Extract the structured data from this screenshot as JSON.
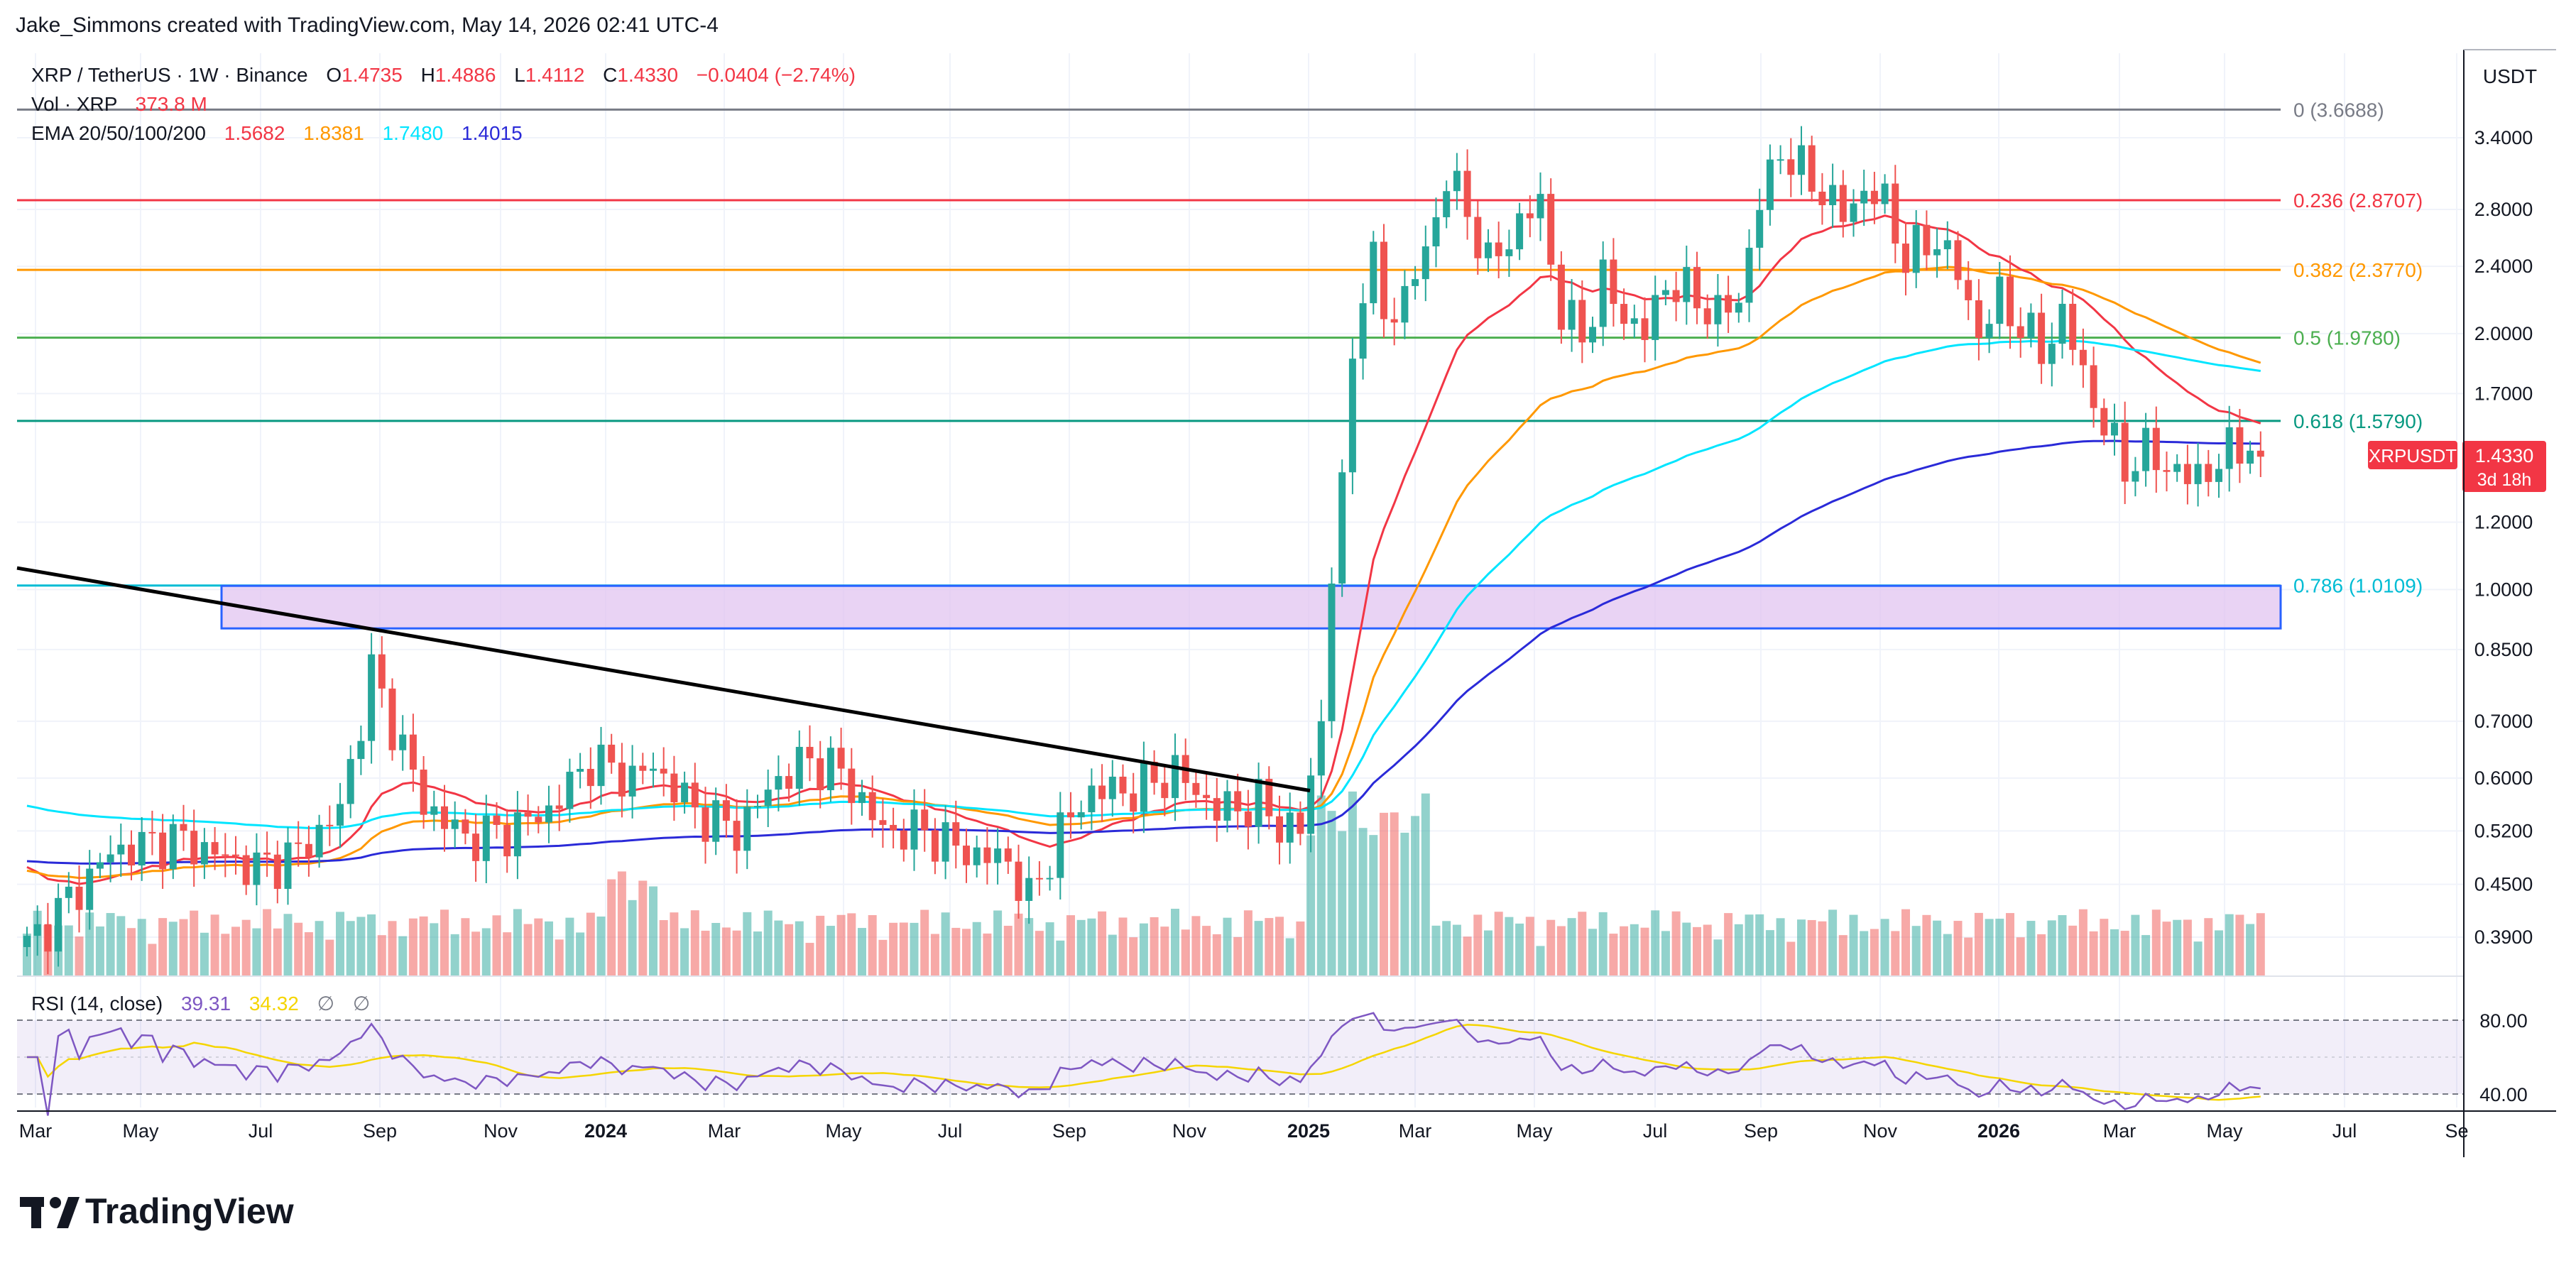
{
  "header": {
    "attribution": "Jake_Simmons created with TradingView.com, May 14, 2026 02:41 UTC-4"
  },
  "legend": {
    "symbol": "XRP / TetherUS · 1W · Binance",
    "o_label": "O",
    "o": "1.4735",
    "h_label": "H",
    "h": "1.4886",
    "l_label": "L",
    "l": "1.4112",
    "c_label": "C",
    "c": "1.4330",
    "change": "−0.0404 (−2.74%)",
    "vol_label": "Vol · XRP",
    "vol": "373.8 M",
    "ema_label": "EMA 20/50/100/200",
    "ema20": "1.5682",
    "ema50": "1.8381",
    "ema100": "1.7480",
    "ema200": "1.4015"
  },
  "axis": {
    "currency": "USDT"
  },
  "price_tag": {
    "symbol": "XRPUSDT",
    "price": "1.4330",
    "countdown": "3d 18h"
  },
  "rsi_legend": {
    "label": "RSI (14, close)",
    "rsi": "39.31",
    "ma": "34.32",
    "sym1": "∅",
    "sym2": "∅"
  },
  "brand": {
    "name": "TradingView"
  },
  "colors": {
    "up": "#26a69a",
    "down": "#ef5350",
    "ema20": "#f23645",
    "ema50": "#ff9800",
    "ema100": "#00e5ff",
    "ema200": "#2a2ad8",
    "rsi": "#7e57c2",
    "rsi_ma": "#f5d500",
    "zone_fill": "#e1c4f0",
    "zone_stroke": "#2962ff",
    "trendline": "#000000"
  },
  "chart_data": {
    "type": "candlestick",
    "price_scale": "log",
    "y_ticks": [
      3.4,
      2.8,
      2.4,
      2.0,
      1.7,
      1.2,
      1.0,
      0.85,
      0.7,
      0.6,
      0.52,
      0.45,
      0.39
    ],
    "y_tick_labels": [
      "3.4000",
      "2.8000",
      "2.4000",
      "2.0000",
      "1.7000",
      "1.2000",
      "1.0000",
      "0.8500",
      "0.7000",
      "0.6000",
      "0.5200",
      "0.4500",
      "0.3900"
    ],
    "x_tick_labels": [
      "Mar",
      "May",
      "Jul",
      "Sep",
      "Nov",
      "2024",
      "Mar",
      "May",
      "Jul",
      "Sep",
      "Nov",
      "2025",
      "Mar",
      "May",
      "Jul",
      "Sep",
      "Nov",
      "2026",
      "Mar",
      "May",
      "Jul",
      "Se"
    ],
    "fib_levels": [
      {
        "ratio": "0",
        "price": 3.6688,
        "label": "0 (3.6688)",
        "color": "#787b86"
      },
      {
        "ratio": "0.236",
        "price": 2.8707,
        "label": "0.236 (2.8707)",
        "color": "#f23645"
      },
      {
        "ratio": "0.382",
        "price": 2.377,
        "label": "0.382 (2.3770)",
        "color": "#ff9800"
      },
      {
        "ratio": "0.5",
        "price": 1.978,
        "label": "0.5 (1.9780)",
        "color": "#4caf50"
      },
      {
        "ratio": "0.618",
        "price": 1.579,
        "label": "0.618 (1.5790)",
        "color": "#089981"
      },
      {
        "ratio": "0.786",
        "price": 1.0109,
        "label": "0.786 (1.0109)",
        "color": "#00bcd4"
      }
    ],
    "zone": {
      "top": 1.01,
      "bottom": 0.9
    },
    "trendline": {
      "start_price": 1.06,
      "end_price": 0.58
    },
    "rsi_levels": [
      80,
      40
    ],
    "weekly_close_anchors": [
      [
        0,
        0.38
      ],
      [
        8,
        0.49
      ],
      [
        14,
        0.51
      ],
      [
        22,
        0.47
      ],
      [
        26,
        0.49
      ],
      [
        30,
        0.55
      ],
      [
        33,
        0.8
      ],
      [
        36,
        0.65
      ],
      [
        38,
        0.56
      ],
      [
        42,
        0.51
      ],
      [
        46,
        0.52
      ],
      [
        50,
        0.55
      ],
      [
        54,
        0.63
      ],
      [
        58,
        0.6
      ],
      [
        60,
        0.62
      ],
      [
        64,
        0.55
      ],
      [
        68,
        0.52
      ],
      [
        72,
        0.6
      ],
      [
        75,
        0.63
      ],
      [
        78,
        0.61
      ],
      [
        82,
        0.52
      ],
      [
        86,
        0.52
      ],
      [
        90,
        0.49
      ],
      [
        94,
        0.48
      ],
      [
        96,
        0.43
      ],
      [
        99,
        0.52
      ],
      [
        102,
        0.58
      ],
      [
        106,
        0.58
      ],
      [
        110,
        0.61
      ],
      [
        114,
        0.55
      ],
      [
        118,
        0.56
      ],
      [
        120,
        0.53
      ],
      [
        122,
        0.52
      ],
      [
        124,
        0.7
      ],
      [
        125,
        1.05
      ],
      [
        126,
        1.3
      ],
      [
        127,
        1.9
      ],
      [
        128,
        2.3
      ],
      [
        129,
        2.4
      ],
      [
        130,
        2.1
      ],
      [
        132,
        2.2
      ],
      [
        134,
        2.5
      ],
      [
        136,
        3.05
      ],
      [
        138,
        2.8
      ],
      [
        140,
        2.4
      ],
      [
        143,
        2.7
      ],
      [
        145,
        2.85
      ],
      [
        147,
        2.1
      ],
      [
        149,
        2.0
      ],
      [
        151,
        2.3
      ],
      [
        153,
        2.1
      ],
      [
        155,
        2.0
      ],
      [
        157,
        2.3
      ],
      [
        160,
        2.2
      ],
      [
        162,
        2.1
      ],
      [
        164,
        2.2
      ],
      [
        166,
        2.85
      ],
      [
        168,
        3.3
      ],
      [
        170,
        3.1
      ],
      [
        172,
        2.95
      ],
      [
        174,
        2.75
      ],
      [
        176,
        2.95
      ],
      [
        178,
        2.85
      ],
      [
        180,
        2.45
      ],
      [
        183,
        2.6
      ],
      [
        185,
        2.35
      ],
      [
        187,
        2.0
      ],
      [
        189,
        2.2
      ],
      [
        191,
        2.05
      ],
      [
        193,
        1.9
      ],
      [
        195,
        2.1
      ],
      [
        197,
        1.8
      ],
      [
        199,
        1.55
      ],
      [
        201,
        1.4
      ],
      [
        203,
        1.45
      ],
      [
        205,
        1.4
      ],
      [
        207,
        1.35
      ],
      [
        209,
        1.38
      ],
      [
        211,
        1.45
      ],
      [
        213,
        1.5
      ],
      [
        214,
        1.433
      ]
    ]
  }
}
